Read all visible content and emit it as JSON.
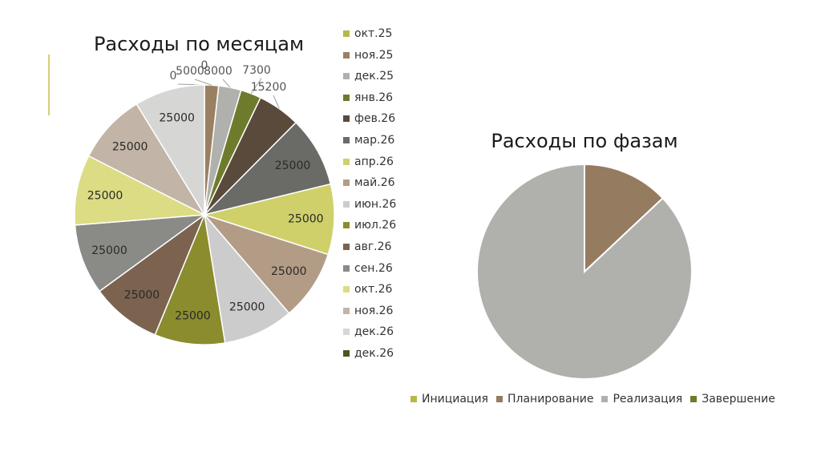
{
  "chart_data": [
    {
      "type": "pie",
      "title": "Расходы по месяцам",
      "categories": [
        "окт.25",
        "ноя.25",
        "дек.25",
        "янв.26",
        "фев.26",
        "мар.26",
        "апр.26",
        "май.26",
        "июн.26",
        "июл.26",
        "авг.26",
        "сен.26",
        "окт.26",
        "ноя.26",
        "дек.26",
        "дек.26"
      ],
      "values": [
        0,
        5000,
        8000,
        7300,
        15200,
        25000,
        25000,
        25000,
        25000,
        25000,
        25000,
        25000,
        25000,
        25000,
        25000,
        0
      ],
      "data_labels": [
        "0",
        "5000",
        "8000",
        "7300",
        "15200",
        "25000",
        "25000",
        "25000",
        "25000",
        "25000",
        "25000",
        "25000",
        "25000",
        "25000",
        "25000",
        "0"
      ],
      "colors": [
        "#b9b64a",
        "#9a8063",
        "#b0b0ac",
        "#6f7b2c",
        "#5a4a3b",
        "#6a6a66",
        "#cfd06a",
        "#b39c86",
        "#cccccc",
        "#8a8c2e",
        "#7b6350",
        "#8a8a86",
        "#dcdc84",
        "#c2b4a6",
        "#d6d6d4",
        "#4e5520"
      ],
      "legend_position": "right"
    },
    {
      "type": "pie",
      "title": "Расходы по фазам",
      "categories": [
        "Инициация",
        "Планирование",
        "Реализация",
        "Завершение"
      ],
      "values": [
        0,
        0.13,
        0.87,
        0
      ],
      "colors": [
        "#b9b64a",
        "#957b5f",
        "#b0b0ac",
        "#6f7b2c"
      ],
      "legend_position": "bottom"
    }
  ]
}
